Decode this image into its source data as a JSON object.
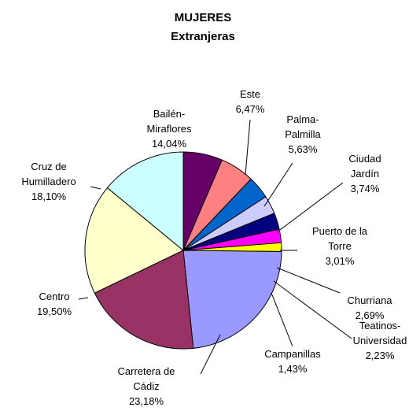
{
  "chart_data": {
    "type": "pie",
    "title": "MUJERES\nExtranjeras",
    "categories": [
      "Este",
      "Palma-\nPalmilla",
      "Ciudad\nJardín",
      "Puerto de la\nTorre",
      "Churriana",
      "Teatinos-\nUniversidad",
      "Campanillas",
      "Carretera de\nCádiz",
      "Centro",
      "Cruz de\nHumilladero",
      "Bailén-\nMiraflores"
    ],
    "values": [
      6.47,
      5.63,
      3.74,
      3.01,
      2.69,
      2.23,
      1.43,
      23.18,
      19.5,
      18.1,
      14.04
    ],
    "value_labels": [
      "6,47%",
      "5,63%",
      "3,74%",
      "3,01%",
      "2,69%",
      "2,23%",
      "1,43%",
      "23,18%",
      "19,50%",
      "18,10%",
      "14,04%"
    ],
    "colors": [
      "#660066",
      "#ff8080",
      "#0066cc",
      "#ccccff",
      "#000080",
      "#ff00ff",
      "#ffff00",
      "#9999ff",
      "#993366",
      "#ffffcc",
      "#ccffff"
    ]
  }
}
